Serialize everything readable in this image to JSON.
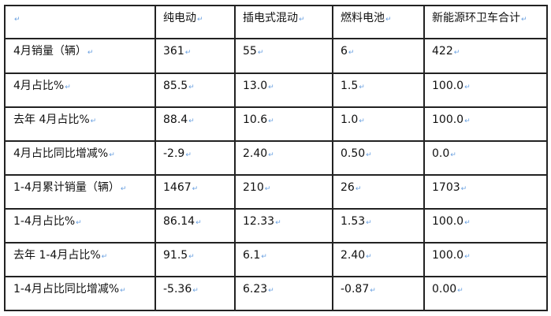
{
  "table": {
    "headers": [
      "",
      "纯电动",
      "插电式混动",
      "燃料电池",
      "新能源环卫车合计"
    ],
    "rows": [
      [
        "4月销量（辆）",
        "361",
        "55",
        "6",
        "422"
      ],
      [
        "4月占比%",
        "85.5",
        "13.0",
        "1.5",
        "100.0"
      ],
      [
        "去年 4月占比%",
        "88.4",
        "10.6",
        "1.0",
        "100.0"
      ],
      [
        "4月占比同比增减%",
        "-2.9",
        "2.40",
        "0.50",
        "0.0"
      ],
      [
        "1-4月累计销量（辆）",
        "1467",
        "210",
        "26",
        "1703"
      ],
      [
        "1-4月占比%",
        "86.14",
        "12.33",
        "1.53",
        "100.0"
      ],
      [
        "去年 1-4月占比%",
        "91.5",
        "6.1",
        "2.40",
        "100.0"
      ],
      [
        "1-4月占比同比增减%",
        "-5.36",
        "6.23",
        "-0.87",
        "0.00"
      ]
    ]
  }
}
